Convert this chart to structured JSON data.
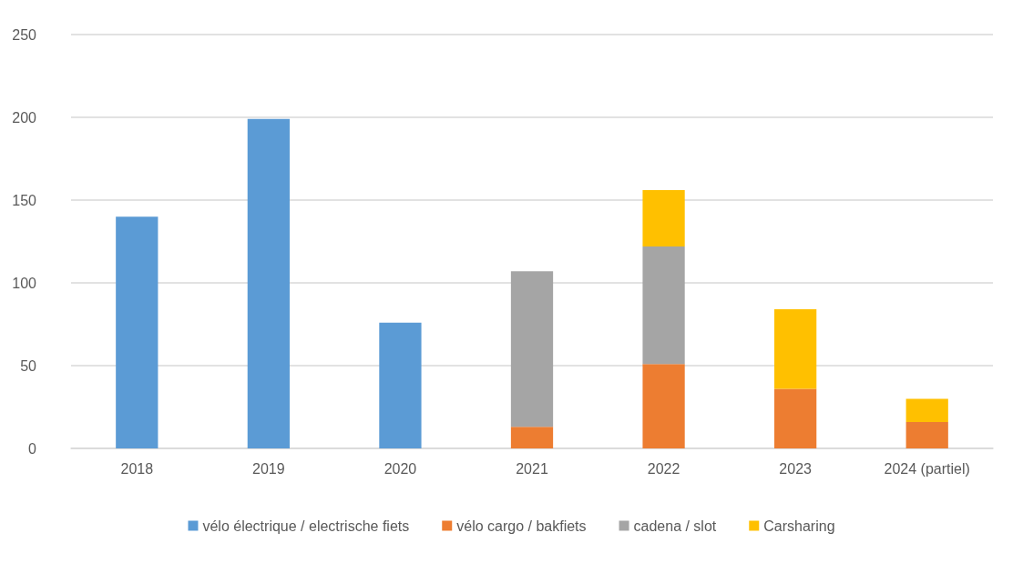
{
  "chart_data": {
    "type": "bar",
    "stacked": true,
    "categories": [
      "2018",
      "2019",
      "2020",
      "2021",
      "2022",
      "2023",
      "2024 (partiel)"
    ],
    "series": [
      {
        "name": "vélo électrique / electrische fiets",
        "color": "#5b9bd5",
        "values": [
          140,
          199,
          76,
          null,
          null,
          null,
          null
        ]
      },
      {
        "name": "vélo cargo / bakfiets",
        "color": "#ed7d31",
        "values": [
          null,
          null,
          null,
          13,
          51,
          36,
          16
        ]
      },
      {
        "name": "cadena / slot",
        "color": "#a5a5a5",
        "values": [
          null,
          null,
          null,
          94,
          71,
          null,
          null
        ]
      },
      {
        "name": "Carsharing",
        "color": "#ffc000",
        "values": [
          null,
          null,
          null,
          null,
          34,
          48,
          14
        ]
      }
    ],
    "ylim": [
      0,
      250
    ],
    "yticks": [
      0,
      50,
      100,
      150,
      200,
      250
    ],
    "grid": "y",
    "legend": "bottom"
  }
}
